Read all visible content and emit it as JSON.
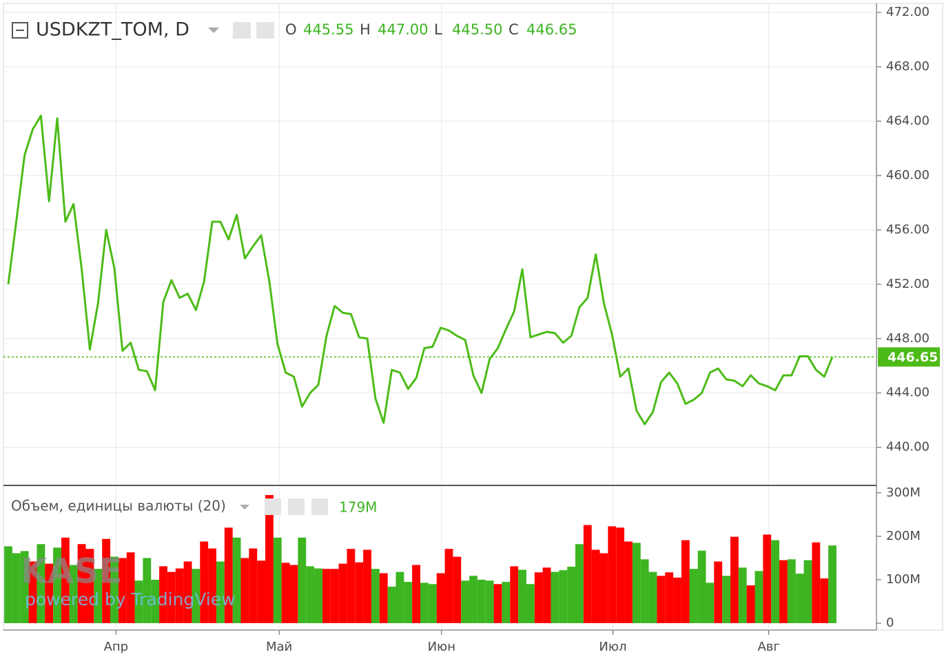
{
  "chart_data": [
    {
      "type": "line",
      "title": "USDKZT_TOM, D",
      "ohlc": [
        {
          "key": "O",
          "text": "445.55"
        },
        {
          "key": "H",
          "text": "447.00"
        },
        {
          "key": "L",
          "text": "445.50"
        },
        {
          "key": "C",
          "text": "446.65"
        }
      ],
      "series": [
        {
          "name": "USDKZT_TOM",
          "color": "#4cbb17",
          "values": [
            452.0,
            456.7,
            461.5,
            463.4,
            464.4,
            458.1,
            464.2,
            456.6,
            457.9,
            453.1,
            447.2,
            450.6,
            456.0,
            453.2,
            447.1,
            447.7,
            445.7,
            445.6,
            444.2,
            450.7,
            452.3,
            451.0,
            451.3,
            450.1,
            452.2,
            456.6,
            456.6,
            455.3,
            457.1,
            453.9,
            454.8,
            455.6,
            452.2,
            447.6,
            445.5,
            445.2,
            443.0,
            444.0,
            444.6,
            448.2,
            450.4,
            449.9,
            449.8,
            448.1,
            448.0,
            443.6,
            441.8,
            445.7,
            445.5,
            444.3,
            445.1,
            447.3,
            447.4,
            448.8,
            448.6,
            448.2,
            447.9,
            445.3,
            444.0,
            446.5,
            447.3,
            448.7,
            450.0,
            453.1,
            448.1,
            448.3,
            448.5,
            448.4,
            447.7,
            448.2,
            450.3,
            451.0,
            454.2,
            450.6,
            448.3,
            445.2,
            445.8,
            442.7,
            441.7,
            442.6,
            444.8,
            445.5,
            444.7,
            443.2,
            443.5,
            444.0,
            445.5,
            445.8,
            445.0,
            444.9,
            444.5,
            445.3,
            444.7,
            444.5,
            444.2,
            445.3,
            445.3,
            446.7,
            446.7,
            445.7,
            445.2,
            446.65
          ]
        }
      ],
      "last_price": {
        "value": 446.65,
        "label": "446.65"
      },
      "ylim": [
        437.3,
        472.66
      ],
      "yticks": [
        {
          "value": 440,
          "label": "440.00"
        },
        {
          "value": 444,
          "label": "444.00"
        },
        {
          "value": 448,
          "label": "448.00"
        },
        {
          "value": 452,
          "label": "452.00"
        },
        {
          "value": 456,
          "label": "456.00"
        },
        {
          "value": 460,
          "label": "460.00"
        },
        {
          "value": 464,
          "label": "464.00"
        },
        {
          "value": 468,
          "label": "468.00"
        },
        {
          "value": 472,
          "label": "472.00"
        }
      ],
      "grid": true,
      "watermark": [
        "KASE",
        "powered by TradingView"
      ]
    },
    {
      "type": "bar",
      "title": "Объем, единицы валюты (20)",
      "last_label": "179M",
      "values": [
        177,
        161,
        166,
        142,
        182,
        137,
        174,
        197,
        134,
        182,
        171,
        125,
        194,
        153,
        150,
        163,
        98,
        150,
        100,
        131,
        118,
        126,
        142,
        125,
        188,
        172,
        142,
        220,
        197,
        150,
        172,
        144,
        295,
        197,
        139,
        134,
        197,
        131,
        126,
        125,
        125,
        137,
        171,
        140,
        169,
        125,
        115,
        84,
        118,
        95,
        134,
        93,
        90,
        115,
        171,
        153,
        98,
        109,
        100,
        98,
        90,
        95,
        131,
        123,
        90,
        117,
        128,
        118,
        122,
        130,
        182,
        226,
        169,
        161,
        223,
        220,
        188,
        185,
        147,
        118,
        109,
        117,
        105,
        191,
        125,
        167,
        93,
        142,
        109,
        199,
        128,
        87,
        120,
        204,
        191,
        145,
        147,
        114,
        145,
        186,
        103,
        179
      ],
      "colors": [
        "#3cb521",
        "#3cb521",
        "#3cb521",
        "#ff0000",
        "#3cb521",
        "#ff0000",
        "#3cb521",
        "#ff0000",
        "#3cb521",
        "#ff0000",
        "#ff0000",
        "#3cb521",
        "#ff0000",
        "#3cb521",
        "#ff0000",
        "#ff0000",
        "#3cb521",
        "#3cb521",
        "#3cb521",
        "#ff0000",
        "#ff0000",
        "#ff0000",
        "#ff0000",
        "#3cb521",
        "#ff0000",
        "#ff0000",
        "#3cb521",
        "#ff0000",
        "#3cb521",
        "#ff0000",
        "#ff0000",
        "#ff0000",
        "#ff0000",
        "#3cb521",
        "#ff0000",
        "#ff0000",
        "#3cb521",
        "#3cb521",
        "#3cb521",
        "#ff0000",
        "#ff0000",
        "#ff0000",
        "#ff0000",
        "#ff0000",
        "#ff0000",
        "#3cb521",
        "#ff0000",
        "#3cb521",
        "#3cb521",
        "#3cb521",
        "#ff0000",
        "#3cb521",
        "#3cb521",
        "#ff0000",
        "#ff0000",
        "#ff0000",
        "#3cb521",
        "#3cb521",
        "#3cb521",
        "#3cb521",
        "#ff0000",
        "#3cb521",
        "#ff0000",
        "#3cb521",
        "#3cb521",
        "#ff0000",
        "#ff0000",
        "#3cb521",
        "#3cb521",
        "#3cb521",
        "#3cb521",
        "#ff0000",
        "#ff0000",
        "#ff0000",
        "#ff0000",
        "#ff0000",
        "#ff0000",
        "#3cb521",
        "#3cb521",
        "#3cb521",
        "#ff0000",
        "#ff0000",
        "#ff0000",
        "#ff0000",
        "#3cb521",
        "#3cb521",
        "#3cb521",
        "#ff0000",
        "#3cb521",
        "#ff0000",
        "#3cb521",
        "#ff0000",
        "#3cb521",
        "#ff0000",
        "#3cb521",
        "#ff0000",
        "#3cb521",
        "#3cb521",
        "#3cb521",
        "#ff0000",
        "#ff0000",
        "#3cb521"
      ],
      "ylim": [
        -15.8,
        314
      ],
      "yticks": [
        0,
        {
          "value": 100,
          "label": "100M"
        },
        {
          "value": 200,
          "label": "200M"
        },
        {
          "value": 300,
          "label": "300M"
        }
      ],
      "xticks": [
        {
          "value": 13.2,
          "label": "Апр"
        },
        {
          "value": 33.2,
          "label": "Май"
        },
        {
          "value": 53.1,
          "label": "Июн"
        },
        {
          "value": 74.1,
          "label": "Июл"
        },
        {
          "value": 93.2,
          "label": "Авг"
        }
      ],
      "grid": true
    }
  ]
}
